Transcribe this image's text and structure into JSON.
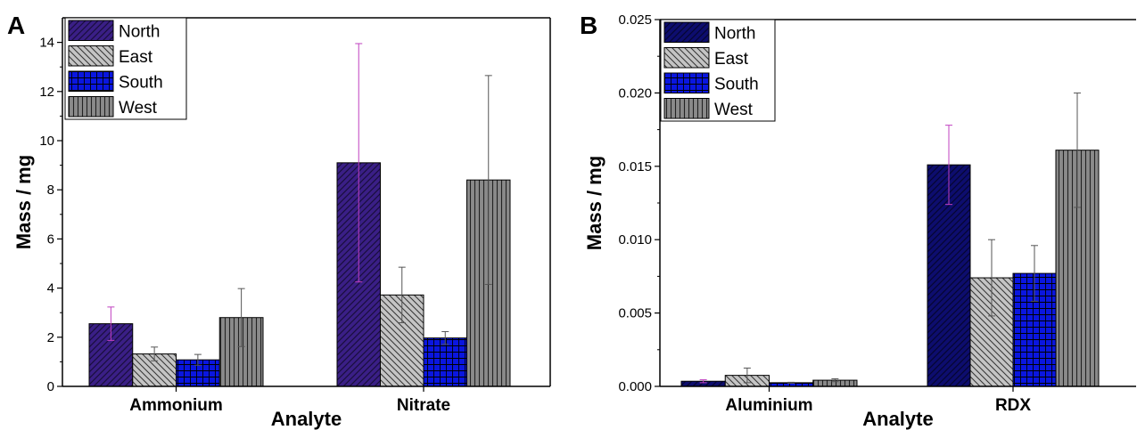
{
  "chart_data": [
    {
      "type": "bar",
      "panel_label": "A",
      "categories": [
        "Ammonium",
        "Nitrate"
      ],
      "xlabel": "Analyte",
      "ylabel": "Mass / mg",
      "ylim": [
        0,
        15
      ],
      "yticks": [
        0,
        2,
        4,
        6,
        8,
        10,
        12,
        14
      ],
      "legend_position": "top-left",
      "series": [
        {
          "name": "North",
          "values": [
            2.55,
            9.1
          ],
          "error": [
            0.68,
            4.85
          ],
          "color": "#3a1f86",
          "pattern": "diag-right",
          "err_color": "#c040c0"
        },
        {
          "name": "East",
          "values": [
            1.32,
            3.72
          ],
          "error": [
            0.28,
            1.13
          ],
          "color": "#c4c4c4",
          "pattern": "diag-left",
          "err_color": "#555555"
        },
        {
          "name": "South",
          "values": [
            1.08,
            1.97
          ],
          "error": [
            0.22,
            0.26
          ],
          "color": "#0a16e0",
          "pattern": "grid",
          "err_color": "#555555"
        },
        {
          "name": "West",
          "values": [
            2.8,
            8.4
          ],
          "error": [
            1.18,
            4.25
          ],
          "color": "#8a8a8a",
          "pattern": "vertical",
          "err_color": "#555555"
        }
      ]
    },
    {
      "type": "bar",
      "panel_label": "B",
      "categories": [
        "Aluminium",
        "RDX"
      ],
      "xlabel": "Analyte",
      "ylabel": "Mass / mg",
      "ylim": [
        0,
        0.025
      ],
      "yticks": [
        "0.000",
        "0.005",
        "0.010",
        "0.015",
        "0.020",
        "0.025"
      ],
      "legend_position": "top-left",
      "series": [
        {
          "name": "North",
          "values": [
            0.00035,
            0.0151
          ],
          "error": [
            0.0001,
            0.0027
          ],
          "color": "#0d0d6e",
          "pattern": "diag-right",
          "err_color": "#c040c0"
        },
        {
          "name": "East",
          "values": [
            0.00075,
            0.0074
          ],
          "error": [
            0.0005,
            0.0026
          ],
          "color": "#c4c4c4",
          "pattern": "diag-left",
          "err_color": "#555555"
        },
        {
          "name": "South",
          "values": [
            0.00025,
            0.0077
          ],
          "error": [
            3e-05,
            0.0019
          ],
          "color": "#0a16e0",
          "pattern": "grid",
          "err_color": "#555555"
        },
        {
          "name": "West",
          "values": [
            0.00042,
            0.0161
          ],
          "error": [
            0.0001,
            0.0039
          ],
          "color": "#8a8a8a",
          "pattern": "vertical",
          "err_color": "#555555"
        }
      ]
    }
  ]
}
